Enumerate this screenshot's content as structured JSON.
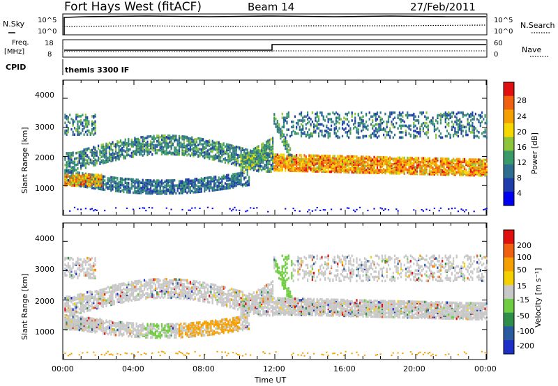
{
  "header": {
    "station": "Fort Hays West (fitACF)",
    "beam": "Beam 14",
    "date": "27/Feb/2011"
  },
  "summary": {
    "nsky_label": "N.Sky",
    "nsky_ticks": [
      "10^5",
      "10^0"
    ],
    "nsearch_label": "N.Search",
    "nsearch_ticks": [
      "10^5",
      "10^0"
    ],
    "freq_label": "Freq.",
    "freq_unit": "[MHz]",
    "freq_ticks": [
      "18",
      "8"
    ],
    "nave_label": "Nave",
    "nave_ticks": [
      "60",
      "0"
    ],
    "cpid_label": "CPID",
    "program_name": "themis 3300 IF"
  },
  "colors": {
    "power_scale": [
      "#0000f0",
      "#1e3caa",
      "#2f6e8f",
      "#3a9a6a",
      "#8cc43a",
      "#f5d800",
      "#f5a000",
      "#f06010",
      "#e01010"
    ],
    "velocity_scale": [
      "#e01010",
      "#f06010",
      "#f5a000",
      "#f5d000",
      "#c8c8c8",
      "#70cc40",
      "#2f8f4a",
      "#2a5aa0",
      "#1e2fc8"
    ]
  },
  "chart_data": [
    {
      "type": "heatmap",
      "title": "Power",
      "xlabel": "",
      "ylabel": "Slant Range [km]",
      "xlim": [
        "00:00",
        "24:00"
      ],
      "ylim": [
        0,
        4600
      ],
      "y_ticks": [
        "4000",
        "3000",
        "2000",
        "1000"
      ],
      "colorbar_label": "Power [dB]",
      "colorbar_ticks": [
        "28",
        "24",
        "20",
        "16",
        "12",
        "8",
        "4"
      ],
      "colorbar_range": [
        0,
        31
      ]
    },
    {
      "type": "heatmap",
      "title": "Velocity",
      "xlabel": "Time UT",
      "ylabel": "Slant Range [km]",
      "x_ticks": [
        "00:00",
        "04:00",
        "08:00",
        "12:00",
        "16:00",
        "20:00",
        "00:00"
      ],
      "xlim": [
        "00:00",
        "24:00"
      ],
      "ylim": [
        0,
        4600
      ],
      "y_ticks": [
        "4000",
        "3000",
        "2000",
        "1000"
      ],
      "colorbar_label": "Velocity [m s⁻¹]",
      "colorbar_ticks": [
        "200",
        "100",
        "50",
        "15",
        "-15",
        "-50",
        "-100",
        "-200"
      ]
    }
  ]
}
